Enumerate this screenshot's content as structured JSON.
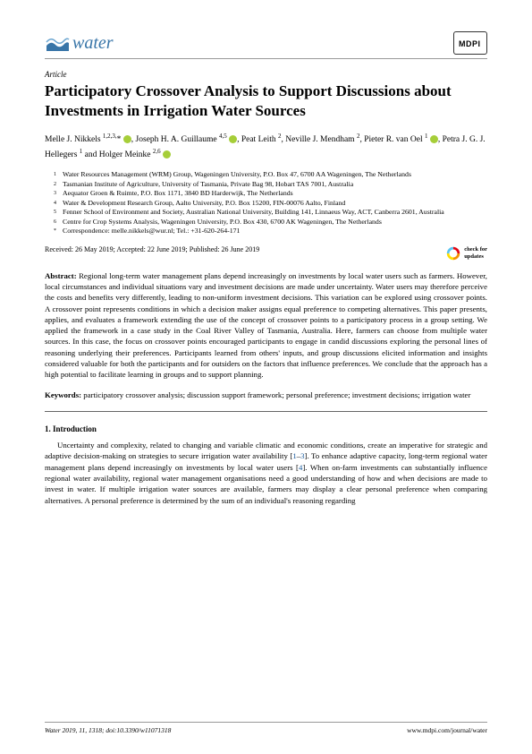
{
  "journal": {
    "name": "water",
    "publisher": "MDPI"
  },
  "article_type": "Article",
  "title": "Participatory Crossover Analysis to Support Discussions about Investments in Irrigation Water Sources",
  "authors_html": "Melle J. Nikkels <sup>1,2,3,</sup>* <span class='orcid'></span>, Joseph H. A. Guillaume <sup>4,5</sup> <span class='orcid'></span>, Peat Leith <sup>2</sup>, Neville J. Mendham <sup>2</sup>, Pieter R. van Oel <sup>1</sup> <span class='orcid'></span>, Petra J. G. J. Hellegers <sup>1</sup> and Holger Meinke <sup>2,6</sup> <span class='orcid'></span>",
  "affiliations": [
    {
      "n": "1",
      "text": "Water Resources Management (WRM) Group, Wageningen University, P.O. Box 47, 6700 AA Wageningen, The Netherlands"
    },
    {
      "n": "2",
      "text": "Tasmanian Institute of Agriculture, University of Tasmania, Private Bag 98, Hobart TAS 7001, Australia"
    },
    {
      "n": "3",
      "text": "Aequator Groen & Ruimte, P.O. Box 1171, 3840 BD Harderwijk, The Netherlands"
    },
    {
      "n": "4",
      "text": "Water & Development Research Group, Aalto University, P.O. Box 15200, FIN-00076 Aalto, Finland"
    },
    {
      "n": "5",
      "text": "Fenner School of Environment and Society, Australian National University, Building 141, Linnaeus Way, ACT, Canberra 2601, Australia"
    },
    {
      "n": "6",
      "text": "Centre for Crop Systems Analysis, Wageningen University, P.O. Box 430, 6700 AK Wageningen, The Netherlands"
    },
    {
      "n": "*",
      "text": "Correspondence: melle.nikkels@wur.nl; Tel.: +31-620-264-171"
    }
  ],
  "dates": "Received: 26 May 2019; Accepted: 22 June 2019; Published: 26 June 2019",
  "check_updates": "check for\nupdates",
  "abstract_label": "Abstract:",
  "abstract": "Regional long-term water management plans depend increasingly on investments by local water users such as farmers. However, local circumstances and individual situations vary and investment decisions are made under uncertainty. Water users may therefore perceive the costs and benefits very differently, leading to non-uniform investment decisions. This variation can be explored using crossover points. A crossover point represents conditions in which a decision maker assigns equal preference to competing alternatives. This paper presents, applies, and evaluates a framework extending the use of the concept of crossover points to a participatory process in a group setting. We applied the framework in a case study in the Coal River Valley of Tasmania, Australia. Here, farmers can choose from multiple water sources. In this case, the focus on crossover points encouraged participants to engage in candid discussions exploring the personal lines of reasoning underlying their preferences. Participants learned from others' inputs, and group discussions elicited information and insights considered valuable for both the participants and for outsiders on the factors that influence preferences. We conclude that the approach has a high potential to facilitate learning in groups and to support planning.",
  "keywords_label": "Keywords:",
  "keywords": "participatory crossover analysis; discussion support framework; personal preference; investment decisions; irrigation water",
  "section1_title": "1. Introduction",
  "intro_html": "Uncertainty and complexity, related to changing and variable climatic and economic conditions, create an imperative for strategic and adaptive decision-making on strategies to secure irrigation water availability [<span class='ref-link'>1</span>–<span class='ref-link'>3</span>]. To enhance adaptive capacity, long-term regional water management plans depend increasingly on investments by local water users [<span class='ref-link'>4</span>]. When on-farm investments can substantially influence regional water availability, regional water management organisations need a good understanding of how and when decisions are made to invest in water. If multiple irrigation water sources are available, farmers may display a clear personal preference when comparing alternatives. A personal preference is determined by the sum of an individual's reasoning regarding",
  "footer": {
    "left": "Water 2019, 11, 1318; doi:10.3390/w11071318",
    "right": "www.mdpi.com/journal/water"
  },
  "colors": {
    "water_blue": "#3875a8",
    "orcid_green": "#a6ce39",
    "ref_blue": "#18599b",
    "check_orange": "#f39200",
    "check_red": "#e30613"
  }
}
